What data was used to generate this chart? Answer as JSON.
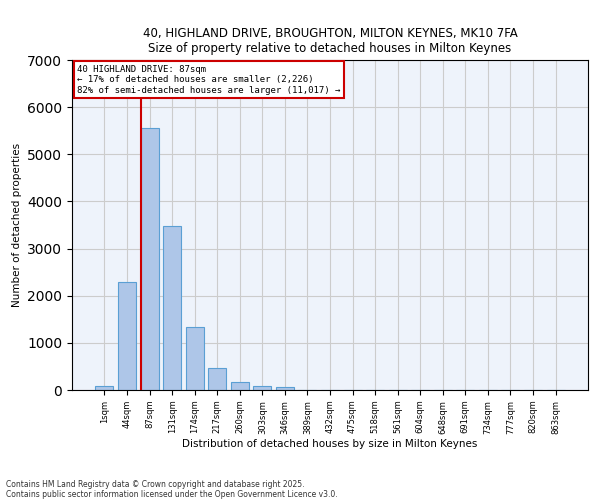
{
  "title1": "40, HIGHLAND DRIVE, BROUGHTON, MILTON KEYNES, MK10 7FA",
  "title2": "Size of property relative to detached houses in Milton Keynes",
  "xlabel": "Distribution of detached houses by size in Milton Keynes",
  "ylabel": "Number of detached properties",
  "categories": [
    "1sqm",
    "44sqm",
    "87sqm",
    "131sqm",
    "174sqm",
    "217sqm",
    "260sqm",
    "303sqm",
    "346sqm",
    "389sqm",
    "432sqm",
    "475sqm",
    "518sqm",
    "561sqm",
    "604sqm",
    "648sqm",
    "691sqm",
    "734sqm",
    "777sqm",
    "820sqm",
    "863sqm"
  ],
  "values": [
    75,
    2300,
    5560,
    3470,
    1330,
    470,
    165,
    95,
    55,
    0,
    0,
    0,
    0,
    0,
    0,
    0,
    0,
    0,
    0,
    0,
    0
  ],
  "bar_color": "#aec6e8",
  "bar_edge_color": "#5a9fd4",
  "vline_idx": 2,
  "vline_color": "#cc0000",
  "annotation_title": "40 HIGHLAND DRIVE: 87sqm",
  "annotation_line1": "← 17% of detached houses are smaller (2,226)",
  "annotation_line2": "82% of semi-detached houses are larger (11,017) →",
  "annotation_box_color": "#cc0000",
  "ylim": [
    0,
    7000
  ],
  "yticks": [
    0,
    1000,
    2000,
    3000,
    4000,
    5000,
    6000,
    7000
  ],
  "grid_color": "#cccccc",
  "bg_color": "#eef3fb",
  "footer1": "Contains HM Land Registry data © Crown copyright and database right 2025.",
  "footer2": "Contains public sector information licensed under the Open Government Licence v3.0."
}
